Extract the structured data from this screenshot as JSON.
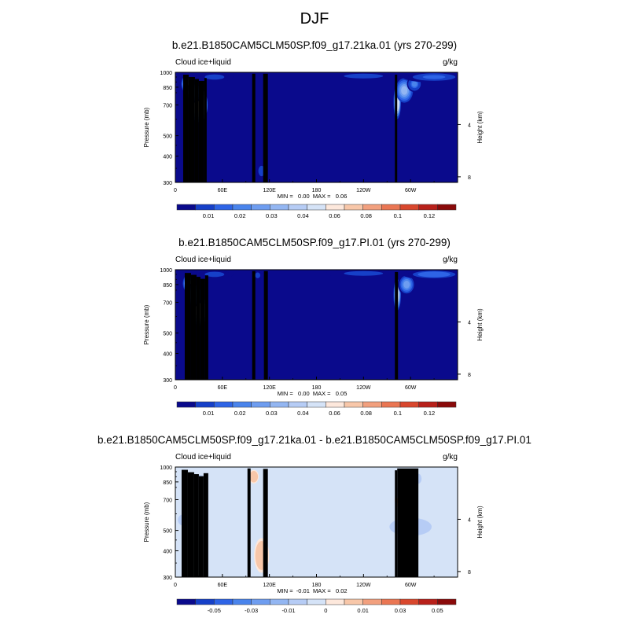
{
  "figure_title": "DJF",
  "colors": {
    "seq_palette": [
      "#0a0a8c",
      "#1640c8",
      "#2e64e6",
      "#4a84ec",
      "#6e9df0",
      "#93b6f2",
      "#b6ccf5",
      "#d5e3f7",
      "#fde8dc",
      "#f8c7a9",
      "#f2a07e",
      "#ea7653",
      "#d9472d",
      "#b8201a",
      "#8a0a0a"
    ],
    "diff_palette": [
      "#0a0a8c",
      "#1640c8",
      "#2e64e6",
      "#4a84ec",
      "#6e9df0",
      "#93b6f2",
      "#b6ccf5",
      "#d5e3f7",
      "#fde8dc",
      "#f8c7a9",
      "#f2a07e",
      "#ea7653",
      "#d9472d",
      "#b8201a",
      "#8a0a0a"
    ],
    "topography": "#000000"
  },
  "chart_data": [
    {
      "type": "heatmap",
      "title": "b.e21.B1850CAM5CLM50SP.f09_g17.21ka.01 (yrs 270-299)",
      "left_label": "Cloud ice+liquid",
      "right_label": "g/kg",
      "ylabel": "Pressure (mb)",
      "y2label": "Height (km)",
      "y_ticks": [
        "300",
        "400",
        "500",
        "700",
        "850",
        "1000"
      ],
      "y_tick_values": [
        300,
        400,
        500,
        700,
        850,
        1000
      ],
      "y2_ticks": [
        "8",
        "4"
      ],
      "y2_tick_values_km": [
        8,
        4
      ],
      "x_ticks": [
        "0",
        "60E",
        "120E",
        "180",
        "120W",
        "60W"
      ],
      "x_tick_values": [
        0,
        60,
        120,
        180,
        240,
        300
      ],
      "xlim": [
        0,
        360
      ],
      "ylim": [
        1000,
        300
      ],
      "stats": "MIN =   0.00  MAX =   0.06",
      "colorbar_labels": [
        "0.01",
        "0.02",
        "0.03",
        "0.04",
        "0.06",
        "0.08",
        "0.1",
        "0.12"
      ],
      "background_value": 0.004,
      "features": [
        {
          "lon": 30,
          "p": 700,
          "value": 0.06,
          "sx": 7,
          "sp": 110
        },
        {
          "lon": 14,
          "p": 880,
          "value": 0.04,
          "sx": 4,
          "sp": 60
        },
        {
          "lon": 24,
          "p": 800,
          "value": 0.03,
          "sx": 7,
          "sp": 70
        },
        {
          "lon": 283,
          "p": 720,
          "value": 0.05,
          "sx": 3,
          "sp": 110
        },
        {
          "lon": 292,
          "p": 820,
          "value": 0.035,
          "sx": 7,
          "sp": 90
        },
        {
          "lon": 305,
          "p": 880,
          "value": 0.022,
          "sx": 6,
          "sp": 60
        },
        {
          "lon": 330,
          "p": 950,
          "value": 0.016,
          "sx": 25,
          "sp": 40
        },
        {
          "lon": 240,
          "p": 960,
          "value": 0.012,
          "sx": 30,
          "sp": 30
        },
        {
          "lon": 50,
          "p": 950,
          "value": 0.012,
          "sx": 15,
          "sp": 35
        },
        {
          "lon": 110,
          "p": 340,
          "value": 0.012,
          "sx": 5,
          "sp": 30
        }
      ],
      "topography": [
        {
          "lon_start": 10,
          "lon_end": 17,
          "p": 975
        },
        {
          "lon_start": 17,
          "lon_end": 25,
          "p": 950
        },
        {
          "lon_start": 25,
          "lon_end": 30,
          "p": 930
        },
        {
          "lon_start": 30,
          "lon_end": 37,
          "p": 910
        },
        {
          "lon_start": 37,
          "lon_end": 40,
          "p": 940
        },
        {
          "lon_start": 98,
          "lon_end": 102,
          "p": 985
        },
        {
          "lon_start": 112,
          "lon_end": 118,
          "p": 985
        },
        {
          "lon_start": 280,
          "lon_end": 283,
          "p": 975
        }
      ]
    },
    {
      "type": "heatmap",
      "title": "b.e21.B1850CAM5CLM50SP.f09_g17.PI.01 (yrs 270-299)",
      "left_label": "Cloud ice+liquid",
      "right_label": "g/kg",
      "ylabel": "Pressure (mb)",
      "y2label": "Height (km)",
      "y_ticks": [
        "300",
        "400",
        "500",
        "700",
        "850",
        "1000"
      ],
      "y_tick_values": [
        300,
        400,
        500,
        700,
        850,
        1000
      ],
      "y2_ticks": [
        "8",
        "4"
      ],
      "y2_tick_values_km": [
        8,
        4
      ],
      "x_ticks": [
        "0",
        "60E",
        "120E",
        "180",
        "120W",
        "60W"
      ],
      "x_tick_values": [
        0,
        60,
        120,
        180,
        240,
        300
      ],
      "xlim": [
        0,
        360
      ],
      "ylim": [
        1000,
        300
      ],
      "stats": "MIN =   0.00  MAX =   0.05",
      "colorbar_labels": [
        "0.01",
        "0.02",
        "0.03",
        "0.04",
        "0.06",
        "0.08",
        "0.1",
        "0.12"
      ],
      "background_value": 0.004,
      "features": [
        {
          "lon": 31,
          "p": 640,
          "value": 0.05,
          "sx": 6,
          "sp": 90
        },
        {
          "lon": 16,
          "p": 860,
          "value": 0.04,
          "sx": 4,
          "sp": 60
        },
        {
          "lon": 24,
          "p": 760,
          "value": 0.028,
          "sx": 7,
          "sp": 80
        },
        {
          "lon": 283,
          "p": 760,
          "value": 0.045,
          "sx": 3,
          "sp": 110
        },
        {
          "lon": 295,
          "p": 850,
          "value": 0.03,
          "sx": 7,
          "sp": 80
        },
        {
          "lon": 330,
          "p": 950,
          "value": 0.018,
          "sx": 25,
          "sp": 40
        },
        {
          "lon": 240,
          "p": 960,
          "value": 0.013,
          "sx": 30,
          "sp": 30
        },
        {
          "lon": 105,
          "p": 940,
          "value": 0.012,
          "sx": 4,
          "sp": 40
        },
        {
          "lon": 50,
          "p": 950,
          "value": 0.012,
          "sx": 15,
          "sp": 35
        }
      ],
      "topography": [
        {
          "lon_start": 12,
          "lon_end": 20,
          "p": 965
        },
        {
          "lon_start": 20,
          "lon_end": 27,
          "p": 945
        },
        {
          "lon_start": 27,
          "lon_end": 32,
          "p": 925
        },
        {
          "lon_start": 32,
          "lon_end": 38,
          "p": 905
        },
        {
          "lon_start": 38,
          "lon_end": 42,
          "p": 940
        },
        {
          "lon_start": 98,
          "lon_end": 102,
          "p": 985
        },
        {
          "lon_start": 113,
          "lon_end": 118,
          "p": 985
        },
        {
          "lon_start": 280,
          "lon_end": 284,
          "p": 975
        }
      ]
    },
    {
      "type": "heatmap",
      "title": "b.e21.B1850CAM5CLM50SP.f09_g17.21ka.01 - b.e21.B1850CAM5CLM50SP.f09_g17.PI.01",
      "left_label": "Cloud ice+liquid",
      "right_label": "g/kg",
      "ylabel": "Pressure (mb)",
      "y2label": "Height (km)",
      "y_ticks": [
        "300",
        "400",
        "500",
        "700",
        "850",
        "1000"
      ],
      "y_tick_values": [
        300,
        400,
        500,
        700,
        850,
        1000
      ],
      "y2_ticks": [
        "8",
        "4"
      ],
      "y2_tick_values_km": [
        8,
        4
      ],
      "x_ticks": [
        "0",
        "60E",
        "120E",
        "180",
        "120W",
        "60W"
      ],
      "x_tick_values": [
        0,
        60,
        120,
        180,
        240,
        300
      ],
      "xlim": [
        0,
        360
      ],
      "ylim": [
        1000,
        300
      ],
      "stats": "MIN =  -0.01  MAX =   0.02",
      "colorbar_labels": [
        "-0.05",
        "-0.03",
        "-0.01",
        "0",
        "0.01",
        "0.03",
        "0.05"
      ],
      "diff_bands": [
        {
          "p_top": 300,
          "p_bottom": 330,
          "value": -0.004
        },
        {
          "p_top": 330,
          "p_bottom": 440,
          "value": 0.004
        },
        {
          "p_top": 440,
          "p_bottom": 620,
          "value": -0.004
        },
        {
          "p_top": 620,
          "p_bottom": 760,
          "value": 0.004
        },
        {
          "p_top": 760,
          "p_bottom": 900,
          "value": -0.004
        },
        {
          "p_top": 900,
          "p_bottom": 1000,
          "value": 0.004
        }
      ],
      "features": [
        {
          "lon": 110,
          "p": 380,
          "value": 0.006,
          "sx": 6,
          "sp": 60
        },
        {
          "lon": 300,
          "p": 520,
          "value": -0.005,
          "sx": 20,
          "sp": 50
        },
        {
          "lon": 283,
          "p": 700,
          "value": 0.015,
          "sx": 2,
          "sp": 40
        },
        {
          "lon": 286,
          "p": 760,
          "value": -0.008,
          "sx": 3,
          "sp": 50
        },
        {
          "lon": 310,
          "p": 880,
          "value": -0.008,
          "sx": 3,
          "sp": 40
        },
        {
          "lon": 30,
          "p": 850,
          "value": -0.006,
          "sx": 8,
          "sp": 60
        },
        {
          "lon": 100,
          "p": 900,
          "value": 0.006,
          "sx": 4,
          "sp": 50
        },
        {
          "lon": 10,
          "p": 560,
          "value": -0.005,
          "sx": 5,
          "sp": 30
        }
      ],
      "topography": [
        {
          "lon_start": 8,
          "lon_end": 16,
          "p": 970
        },
        {
          "lon_start": 16,
          "lon_end": 24,
          "p": 945
        },
        {
          "lon_start": 24,
          "lon_end": 30,
          "p": 925
        },
        {
          "lon_start": 30,
          "lon_end": 36,
          "p": 905
        },
        {
          "lon_start": 36,
          "lon_end": 42,
          "p": 935
        },
        {
          "lon_start": 92,
          "lon_end": 96,
          "p": 985
        },
        {
          "lon_start": 112,
          "lon_end": 118,
          "p": 980
        },
        {
          "lon_start": 280,
          "lon_end": 283,
          "p": 965
        },
        {
          "lon_start": 283,
          "lon_end": 310,
          "p": 985
        }
      ]
    }
  ]
}
